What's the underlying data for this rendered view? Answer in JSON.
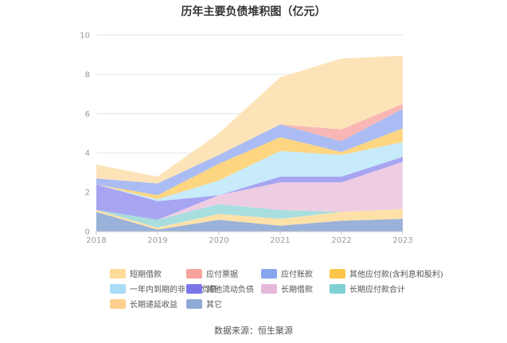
{
  "title": "历年主要负债堆积图（亿元）",
  "source": "数据来源：恒生聚源",
  "chart_data": {
    "type": "area",
    "stacked": true,
    "title": "历年主要负债堆积图（亿元）",
    "x": [
      "2018",
      "2019",
      "2020",
      "2021",
      "2022",
      "2023"
    ],
    "ylim": [
      0,
      10
    ],
    "yticks": [
      0,
      2,
      4,
      6,
      8,
      10
    ],
    "grid": true,
    "legend_position": "bottom",
    "series": [
      {
        "name": "其它",
        "color": "#9ab2d9",
        "values": [
          1.0,
          0.1,
          0.6,
          0.3,
          0.55,
          0.65
        ]
      },
      {
        "name": "长期递延收益",
        "color": "#fde1a9",
        "values": [
          0.1,
          0.1,
          0.3,
          0.35,
          0.45,
          0.5
        ]
      },
      {
        "name": "长期应付款合计",
        "color": "#a8dede",
        "values": [
          0.0,
          0.4,
          0.5,
          0.45,
          0.0,
          0.0
        ]
      },
      {
        "name": "长期借款",
        "color": "#eecde3",
        "values": [
          0.0,
          0.0,
          0.45,
          1.4,
          1.5,
          2.4
        ]
      },
      {
        "name": "其他流动负债",
        "color": "#a7a5f2",
        "values": [
          1.3,
          0.95,
          0.0,
          0.3,
          0.3,
          0.25
        ]
      },
      {
        "name": "一年内到期的非流动负债",
        "color": "#c7ebfa",
        "values": [
          0.0,
          0.1,
          0.75,
          1.3,
          1.1,
          0.75
        ]
      },
      {
        "name": "其他应付款(含利息和股利)",
        "color": "#fed580",
        "values": [
          0.0,
          0.2,
          0.85,
          0.7,
          0.15,
          0.7
        ]
      },
      {
        "name": "应付账款",
        "color": "#aabcf3",
        "values": [
          0.3,
          0.6,
          0.45,
          0.65,
          0.55,
          1.0
        ]
      },
      {
        "name": "应付票据",
        "color": "#f8b7b4",
        "values": [
          0.0,
          0.0,
          0.0,
          0.0,
          0.6,
          0.25
        ]
      },
      {
        "name": "短期借款",
        "color": "#fde3b8",
        "values": [
          0.7,
          0.35,
          1.1,
          2.4,
          3.6,
          2.45
        ]
      }
    ]
  },
  "legend": [
    {
      "label": "短期借款",
      "color": "#fddb98"
    },
    {
      "label": "应付票据",
      "color": "#f7a29c"
    },
    {
      "label": "应付账款",
      "color": "#88a6ee"
    },
    {
      "label": "其他应付款(含利息和股利)",
      "color": "#fdc64b"
    },
    {
      "label": "一年内到期的非流动负债",
      "color": "#a8dcf7"
    },
    {
      "label": "其他流动负债",
      "color": "#7a76ea"
    },
    {
      "label": "长期借款",
      "color": "#e6b8d8"
    },
    {
      "label": "长期应付款合计",
      "color": "#7fd0d2"
    },
    {
      "label": "长期递延收益",
      "color": "#fdd08e"
    },
    {
      "label": "其它",
      "color": "#8fa9d6"
    }
  ]
}
